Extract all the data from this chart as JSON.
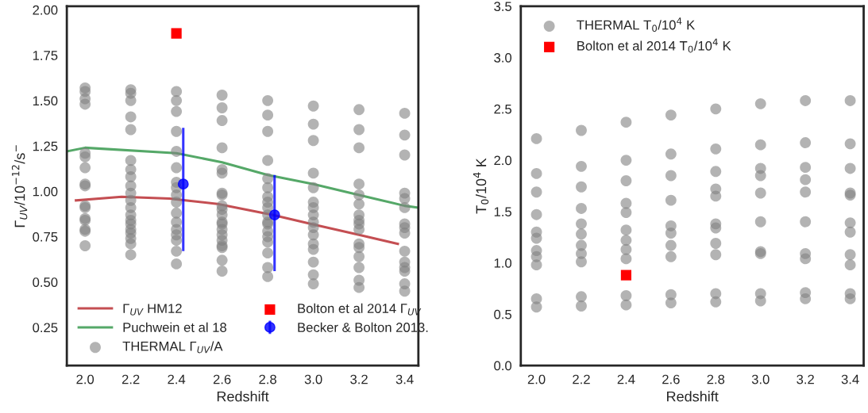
{
  "chart_data": [
    {
      "type": "scatter",
      "xlabel": "Redshift",
      "ylabel": "Γ$_{UV}$/10$^{−12}$/s$^{−}$",
      "xlim": [
        1.92,
        3.46
      ],
      "ylim": [
        0.04,
        2.02
      ],
      "xticks": [
        {
          "value": 2.0,
          "label": "2.0"
        },
        {
          "value": 2.2,
          "label": "2.2"
        },
        {
          "value": 2.4,
          "label": "2.4"
        },
        {
          "value": 2.6,
          "label": "2.6"
        },
        {
          "value": 2.8,
          "label": "2.8"
        },
        {
          "value": 3.0,
          "label": "3.0"
        },
        {
          "value": 3.2,
          "label": "3.2"
        },
        {
          "value": 3.4,
          "label": "3.4"
        }
      ],
      "yticks": [
        {
          "value": 0.25,
          "label": "0.25"
        },
        {
          "value": 0.5,
          "label": "0.50"
        },
        {
          "value": 0.75,
          "label": "0.75"
        },
        {
          "value": 1.0,
          "label": "1.00"
        },
        {
          "value": 1.25,
          "label": "1.25"
        },
        {
          "value": 1.5,
          "label": "1.50"
        },
        {
          "value": 1.75,
          "label": "1.75"
        },
        {
          "value": 2.0,
          "label": "2.00"
        }
      ],
      "grid": false,
      "legend": "bottom",
      "series": [
        {
          "name": "Γ$_{UV}$ HM12",
          "type": "line",
          "color": "#c44e52",
          "x": [
            1.96,
            2.16,
            2.37,
            2.58,
            2.82,
            2.99,
            3.2,
            3.37
          ],
          "values": [
            0.95,
            0.97,
            0.96,
            0.93,
            0.87,
            0.82,
            0.76,
            0.71
          ]
        },
        {
          "name": "Puchwein et al 18",
          "type": "line",
          "color": "#55a868",
          "x": [
            1.92,
            2.0,
            2.4,
            2.6,
            2.8,
            3.0,
            3.2,
            3.4,
            3.46
          ],
          "values": [
            1.22,
            1.24,
            1.21,
            1.16,
            1.09,
            1.04,
            0.98,
            0.92,
            0.91
          ]
        },
        {
          "name": "THERMAL Γ$_{UV}$/A",
          "marker": "circle",
          "color": "#808080",
          "x": [
            2.0,
            2.0,
            2.0,
            2.0,
            2.0,
            2.0,
            2.0,
            2.0,
            2.0,
            2.0,
            2.0,
            2.0,
            2.0,
            2.0,
            2.0,
            2.0,
            2.2,
            2.2,
            2.2,
            2.2,
            2.2,
            2.2,
            2.2,
            2.2,
            2.2,
            2.2,
            2.2,
            2.2,
            2.2,
            2.2,
            2.2,
            2.2,
            2.2,
            2.2,
            2.2,
            2.2,
            2.4,
            2.4,
            2.4,
            2.4,
            2.4,
            2.4,
            2.4,
            2.4,
            2.4,
            2.4,
            2.4,
            2.4,
            2.4,
            2.4,
            2.4,
            2.4,
            2.4,
            2.6,
            2.6,
            2.6,
            2.6,
            2.6,
            2.6,
            2.6,
            2.6,
            2.6,
            2.6,
            2.6,
            2.6,
            2.6,
            2.6,
            2.6,
            2.6,
            2.6,
            2.6,
            2.6,
            2.6,
            2.8,
            2.8,
            2.8,
            2.8,
            2.8,
            2.8,
            2.8,
            2.8,
            2.8,
            2.8,
            2.8,
            2.8,
            2.8,
            2.8,
            2.8,
            2.8,
            2.8,
            2.8,
            3.0,
            3.0,
            3.0,
            3.0,
            3.0,
            3.0,
            3.0,
            3.0,
            3.0,
            3.0,
            3.0,
            3.0,
            3.0,
            3.0,
            3.0,
            3.0,
            3.2,
            3.2,
            3.2,
            3.2,
            3.2,
            3.2,
            3.2,
            3.2,
            3.2,
            3.2,
            3.2,
            3.2,
            3.2,
            3.2,
            3.2,
            3.2,
            3.4,
            3.4,
            3.4,
            3.4,
            3.4,
            3.4,
            3.4,
            3.4,
            3.4,
            3.4,
            3.4,
            3.4,
            3.4,
            3.4,
            3.4
          ],
          "values": [
            1.57,
            1.55,
            1.51,
            1.48,
            1.21,
            1.19,
            1.13,
            1.04,
            1.03,
            0.92,
            0.91,
            0.85,
            0.84,
            0.79,
            0.78,
            0.7,
            1.56,
            1.54,
            1.5,
            1.41,
            1.34,
            1.17,
            1.12,
            1.08,
            1.03,
            0.99,
            0.95,
            0.91,
            0.87,
            0.84,
            0.82,
            0.79,
            0.77,
            0.74,
            0.71,
            0.65,
            1.55,
            1.5,
            1.44,
            1.33,
            1.22,
            1.13,
            1.05,
            1.02,
            0.98,
            0.94,
            0.88,
            0.83,
            0.79,
            0.76,
            0.73,
            0.67,
            0.6,
            1.53,
            1.46,
            1.39,
            1.24,
            1.12,
            1.1,
            0.99,
            0.98,
            0.92,
            0.9,
            0.87,
            0.83,
            0.82,
            0.79,
            0.76,
            0.73,
            0.7,
            0.69,
            0.62,
            0.56,
            1.5,
            1.42,
            1.33,
            1.17,
            1.07,
            1.02,
            0.97,
            0.94,
            0.91,
            0.87,
            0.83,
            0.82,
            0.78,
            0.75,
            0.72,
            0.66,
            0.58,
            0.53,
            1.47,
            1.37,
            1.28,
            1.1,
            1.02,
            0.94,
            0.91,
            0.87,
            0.83,
            0.8,
            0.76,
            0.71,
            0.68,
            0.61,
            0.54,
            0.49,
            1.45,
            1.34,
            1.24,
            1.04,
            0.98,
            0.93,
            0.87,
            0.84,
            0.82,
            0.79,
            0.71,
            0.69,
            0.64,
            0.58,
            0.51,
            0.47,
            1.43,
            1.31,
            1.2,
            0.99,
            0.96,
            0.91,
            0.82,
            0.8,
            0.77,
            0.67,
            0.61,
            0.58,
            0.56,
            0.49,
            0.45
          ]
        },
        {
          "name": "Bolton et al 2014 Γ$_{UV}$",
          "marker": "square",
          "color": "#ff0000",
          "x": [
            2.4
          ],
          "values": [
            1.87
          ]
        },
        {
          "name": "Becker & Bolton 2013.",
          "marker": "circle",
          "color": "#0000ff",
          "x": [
            2.43,
            2.83
          ],
          "values": [
            1.04,
            0.87
          ],
          "errors": [
            [
              0.67,
              1.35
            ],
            [
              0.56,
              1.09
            ]
          ]
        }
      ]
    },
    {
      "type": "scatter",
      "xlabel": "Redshift",
      "ylabel": "T$_{0}$/10$^{4}$ K",
      "xlim": [
        1.93,
        3.46
      ],
      "ylim": [
        0.0,
        3.5
      ],
      "xticks": [
        {
          "value": 2.0,
          "label": "2.0"
        },
        {
          "value": 2.2,
          "label": "2.2"
        },
        {
          "value": 2.4,
          "label": "2.4"
        },
        {
          "value": 2.6,
          "label": "2.6"
        },
        {
          "value": 2.8,
          "label": "2.8"
        },
        {
          "value": 3.0,
          "label": "3.0"
        },
        {
          "value": 3.2,
          "label": "3.2"
        },
        {
          "value": 3.4,
          "label": "3.4"
        }
      ],
      "yticks": [
        {
          "value": 0.0,
          "label": "0.0"
        },
        {
          "value": 0.5,
          "label": "0.5"
        },
        {
          "value": 1.0,
          "label": "1.0"
        },
        {
          "value": 1.5,
          "label": "1.5"
        },
        {
          "value": 2.0,
          "label": "2.0"
        },
        {
          "value": 2.5,
          "label": "2.5"
        },
        {
          "value": 3.0,
          "label": "3.0"
        },
        {
          "value": 3.5,
          "label": "3.5"
        }
      ],
      "grid": false,
      "legend": "top left",
      "series": [
        {
          "name": "THERMAL T$_{0}$/10$^{4}$ K",
          "marker": "circle",
          "color": "#808080",
          "x": [
            2.0,
            2.0,
            2.0,
            2.0,
            2.0,
            2.0,
            2.0,
            2.0,
            2.0,
            2.0,
            2.0,
            2.2,
            2.2,
            2.2,
            2.2,
            2.2,
            2.2,
            2.2,
            2.2,
            2.2,
            2.2,
            2.2,
            2.4,
            2.4,
            2.4,
            2.4,
            2.4,
            2.4,
            2.4,
            2.4,
            2.4,
            2.4,
            2.4,
            2.6,
            2.6,
            2.6,
            2.6,
            2.6,
            2.6,
            2.6,
            2.6,
            2.6,
            2.6,
            2.8,
            2.8,
            2.8,
            2.8,
            2.8,
            2.8,
            2.8,
            2.8,
            2.8,
            2.8,
            2.8,
            3.0,
            3.0,
            3.0,
            3.0,
            3.0,
            3.0,
            3.0,
            3.0,
            3.0,
            3.0,
            3.2,
            3.2,
            3.2,
            3.2,
            3.2,
            3.2,
            3.2,
            3.2,
            3.2,
            3.2,
            3.4,
            3.4,
            3.4,
            3.4,
            3.4,
            3.4,
            3.4,
            3.4,
            3.4,
            3.4,
            3.4
          ],
          "values": [
            2.21,
            1.87,
            1.69,
            1.47,
            1.3,
            1.24,
            1.12,
            1.06,
            0.98,
            0.65,
            0.57,
            2.29,
            1.94,
            1.74,
            1.53,
            1.38,
            1.28,
            1.17,
            1.09,
            1.01,
            0.67,
            0.58,
            2.37,
            2.0,
            1.8,
            1.58,
            1.49,
            1.32,
            1.22,
            1.13,
            1.04,
            0.68,
            0.59,
            2.44,
            2.06,
            1.85,
            1.61,
            1.36,
            1.29,
            1.17,
            1.06,
            0.69,
            0.61,
            2.5,
            2.11,
            1.89,
            1.72,
            1.65,
            1.38,
            1.34,
            1.19,
            1.08,
            0.7,
            0.62,
            2.55,
            2.15,
            1.92,
            1.85,
            1.68,
            1.4,
            1.11,
            1.09,
            0.7,
            0.63,
            2.58,
            2.17,
            1.93,
            1.81,
            1.69,
            1.4,
            1.09,
            1.04,
            0.71,
            0.65,
            2.58,
            2.16,
            1.92,
            1.68,
            1.66,
            1.39,
            1.3,
            1.08,
            0.98,
            0.7,
            0.65
          ]
        },
        {
          "name": "Bolton et al 2014 T$_{0}$/10$^{4}$ K",
          "marker": "square",
          "color": "#ff0000",
          "x": [
            2.4
          ],
          "values": [
            0.88
          ]
        }
      ]
    }
  ]
}
